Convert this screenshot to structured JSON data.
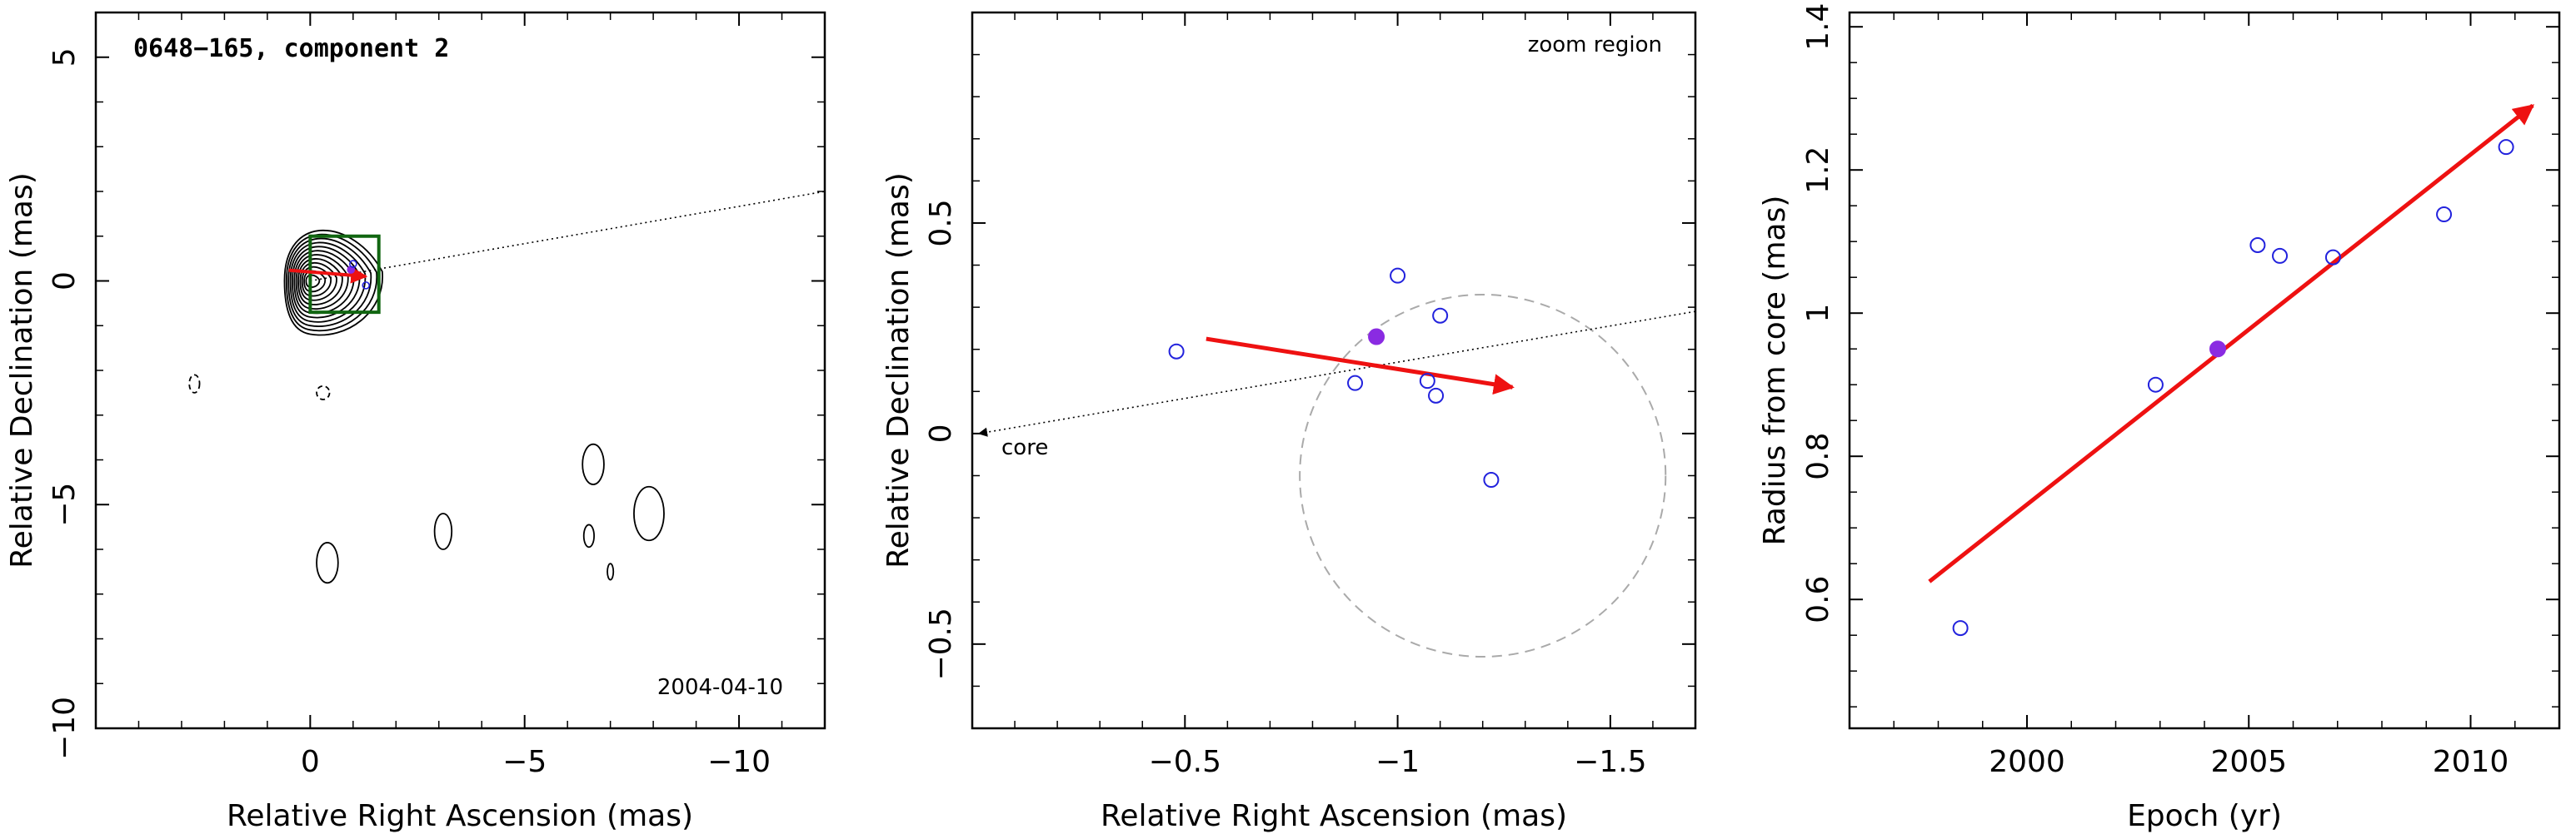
{
  "chart_data": [
    {
      "type": "contour",
      "title": "0648−165, component 2",
      "epoch_label": "2004-04-10",
      "xlabel": "Relative Right Ascension (mas)",
      "ylabel": "Relative Declination (mas)",
      "xlim": [
        5.0,
        -12.0
      ],
      "ylim": [
        -10.0,
        6.0
      ],
      "x_ticks": [
        0,
        -5,
        -10
      ],
      "x_tick_labels": [
        "0",
        "−5",
        "−10"
      ],
      "y_ticks": [
        5,
        0,
        -5,
        -10
      ],
      "y_tick_labels": [
        "5",
        "0",
        "−5",
        "−10"
      ],
      "core": {
        "x": 0.0,
        "y": 0.0
      },
      "contour_levels": 12,
      "zoom_box": {
        "x0": 0.0,
        "x1": -1.6,
        "y0": -0.7,
        "y1": 1.0
      },
      "direction_line": {
        "x0": 0.0,
        "y0": 0.0,
        "x1": -12.0,
        "y1": 2.0
      },
      "motion_vector": {
        "x0": 0.5,
        "y0": 0.24,
        "x1": -1.3,
        "y1": 0.1
      },
      "components": [
        {
          "x": -0.95,
          "y": 0.25,
          "filled": true
        },
        {
          "x": -1.0,
          "y": 0.38,
          "filled": false
        },
        {
          "x": -1.3,
          "y": -0.1,
          "filled": false
        }
      ],
      "noise_contours": [
        {
          "x": -6.6,
          "y": -4.1,
          "rx": 0.25,
          "ry": 0.45,
          "dashed": false
        },
        {
          "x": -7.9,
          "y": -5.2,
          "rx": 0.35,
          "ry": 0.6,
          "dashed": false
        },
        {
          "x": -3.1,
          "y": -5.6,
          "rx": 0.2,
          "ry": 0.4,
          "dashed": false
        },
        {
          "x": -0.4,
          "y": -6.3,
          "rx": 0.25,
          "ry": 0.45,
          "dashed": false
        },
        {
          "x": -6.5,
          "y": -5.7,
          "rx": 0.12,
          "ry": 0.25,
          "dashed": false
        },
        {
          "x": -7.0,
          "y": -6.5,
          "rx": 0.07,
          "ry": 0.18,
          "dashed": false
        },
        {
          "x": 2.7,
          "y": -2.3,
          "rx": 0.12,
          "ry": 0.2,
          "dashed": true
        },
        {
          "x": -0.3,
          "y": -2.5,
          "rx": 0.15,
          "ry": 0.15,
          "dashed": true
        }
      ]
    },
    {
      "type": "scatter",
      "corner_label": "zoom region",
      "core_label": "core",
      "xlabel": "Relative Right Ascension (mas)",
      "ylabel": "Relative Declination (mas)",
      "xlim": [
        0.0,
        -1.7
      ],
      "ylim": [
        -0.7,
        1.0
      ],
      "x_ticks": [
        -0.5,
        -1,
        -1.5
      ],
      "x_tick_labels": [
        "−0.5",
        "−1",
        "−1.5"
      ],
      "y_ticks": [
        0.5,
        0,
        -0.5
      ],
      "y_tick_labels": [
        "0.5",
        "0",
        "−0.5"
      ],
      "points": [
        {
          "x": -0.48,
          "y": 0.195,
          "filled": false
        },
        {
          "x": -0.9,
          "y": 0.12,
          "filled": false
        },
        {
          "x": -0.95,
          "y": 0.23,
          "filled": true
        },
        {
          "x": -1.0,
          "y": 0.375,
          "filled": false
        },
        {
          "x": -1.1,
          "y": 0.28,
          "filled": false
        },
        {
          "x": -1.07,
          "y": 0.125,
          "filled": false
        },
        {
          "x": -1.09,
          "y": 0.09,
          "filled": false
        },
        {
          "x": -1.22,
          "y": -0.11,
          "filled": false
        }
      ],
      "motion_vector": {
        "x0": -0.55,
        "y0": 0.225,
        "x1": -1.27,
        "y1": 0.11
      },
      "direction_line": {
        "x0": 0.0,
        "y0": 0.0,
        "x1": -1.7,
        "y1": 0.29
      },
      "circle": {
        "cx": -1.2,
        "cy": -0.1,
        "r": 0.43
      }
    },
    {
      "type": "scatter",
      "xlabel": "Epoch (yr)",
      "ylabel": "Radius from core (mas)",
      "xlim": [
        1996.0,
        2012.0
      ],
      "ylim": [
        0.42,
        1.42
      ],
      "x_ticks": [
        2000,
        2005,
        2010
      ],
      "x_tick_labels": [
        "2000",
        "2005",
        "2010"
      ],
      "y_ticks": [
        0.6,
        0.8,
        1.0,
        1.2,
        1.4
      ],
      "y_tick_labels": [
        "0.6",
        "0.8",
        "1",
        "1.2",
        "1.4"
      ],
      "points": [
        {
          "x": 1998.5,
          "y": 0.56,
          "filled": false
        },
        {
          "x": 2002.9,
          "y": 0.9,
          "filled": false
        },
        {
          "x": 2004.3,
          "y": 0.95,
          "filled": true
        },
        {
          "x": 2005.2,
          "y": 1.095,
          "filled": false
        },
        {
          "x": 2005.7,
          "y": 1.08,
          "filled": false
        },
        {
          "x": 2006.9,
          "y": 1.078,
          "filled": false
        },
        {
          "x": 2009.4,
          "y": 1.138,
          "filled": false
        },
        {
          "x": 2010.8,
          "y": 1.232,
          "filled": false
        }
      ],
      "fit": {
        "x0": 1997.8,
        "y0": 0.625,
        "x1": 2011.4,
        "y1": 1.29
      }
    }
  ],
  "colors": {
    "open_marker": "#2222dd",
    "filled_marker": "#8a2be2",
    "vector": "#ee1111",
    "zoom_box": "#116611",
    "dashed_circle": "#aaaaaa",
    "axis": "#000000"
  }
}
